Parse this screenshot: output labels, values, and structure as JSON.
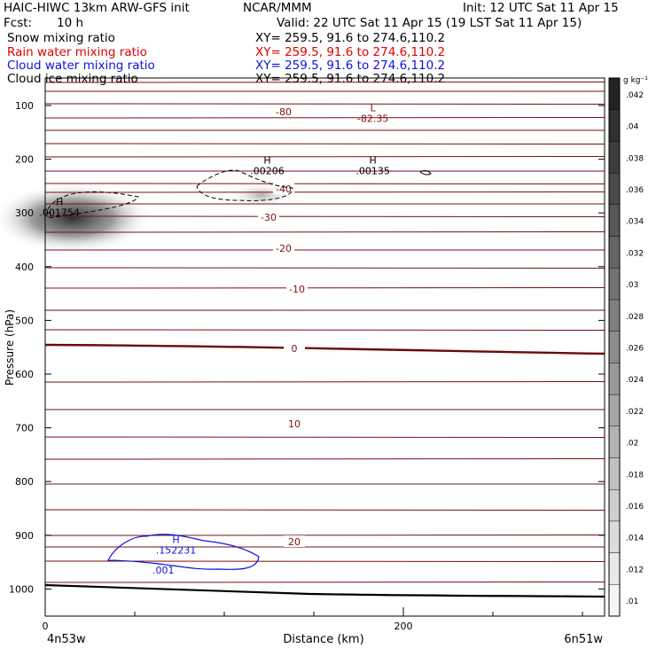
{
  "header": {
    "model": "HAIC-HIWC 13km ARW-GFS init",
    "org": "NCAR/MMM",
    "init": "Init: 12 UTC Sat 11 Apr 15",
    "fcst_label": "Fcst:",
    "fcst_value": "10 h",
    "valid": "Valid: 22 UTC Sat 11 Apr 15 (19 LST Sat 11 Apr 15)",
    "fields": [
      {
        "name": "Snow mixing ratio",
        "xy": "XY= 259.5, 91.6 to 274.6,110.2",
        "color": "#000000"
      },
      {
        "name": "Rain water mixing ratio",
        "xy": "XY= 259.5, 91.6 to 274.6,110.2",
        "color": "#e00000"
      },
      {
        "name": "Cloud water mixing ratio",
        "xy": "XY= 259.5, 91.6 to 274.6,110.2",
        "color": "#1010e0"
      },
      {
        "name": "Cloud ice mixing ratio",
        "xy": "XY= 259.5, 91.6 to 274.6,110.2",
        "color": "#000000"
      }
    ]
  },
  "chart_data": {
    "type": "cross-section",
    "xlabel": "Distance (km)",
    "ylabel": "Pressure (hPa)",
    "x_range": [
      0,
      300
    ],
    "y_range_hpa": [
      50,
      1060
    ],
    "x_ticks": [
      0,
      200
    ],
    "y_ticks": [
      100,
      200,
      300,
      400,
      500,
      600,
      700,
      800,
      900,
      1000
    ],
    "x_endpoints": {
      "left": "4n53w",
      "right": "6n51w"
    },
    "temperature_labels": [
      "-80",
      "-40",
      "-30",
      "-20",
      "-10",
      "0",
      "10",
      "20"
    ],
    "extrema": [
      {
        "type": "L",
        "value": "-82.35",
        "x": 183,
        "p": 117
      },
      {
        "type": "H",
        "value": ".00206",
        "x": 124,
        "p": 215
      },
      {
        "type": "H",
        "value": ".00135",
        "x": 183,
        "p": 215
      },
      {
        "type": "H",
        "value": ".001754",
        "x": 8,
        "p": 292
      },
      {
        "type": "H",
        "value": ".152231",
        "x": 73,
        "p": 921
      }
    ],
    "cloud_water_label": ".001",
    "colorbar": {
      "unit": "g kg⁻¹",
      "levels": [
        ".01",
        ".012",
        ".014",
        ".016",
        ".018",
        ".02",
        ".022",
        ".024",
        ".026",
        ".028",
        ".03",
        ".032",
        ".034",
        ".036",
        ".038",
        ".04",
        ".042"
      ]
    },
    "colors": {
      "isotherm": "#7a0f0f",
      "cloud_water": "#1010e0",
      "terrain": "#000000"
    }
  }
}
